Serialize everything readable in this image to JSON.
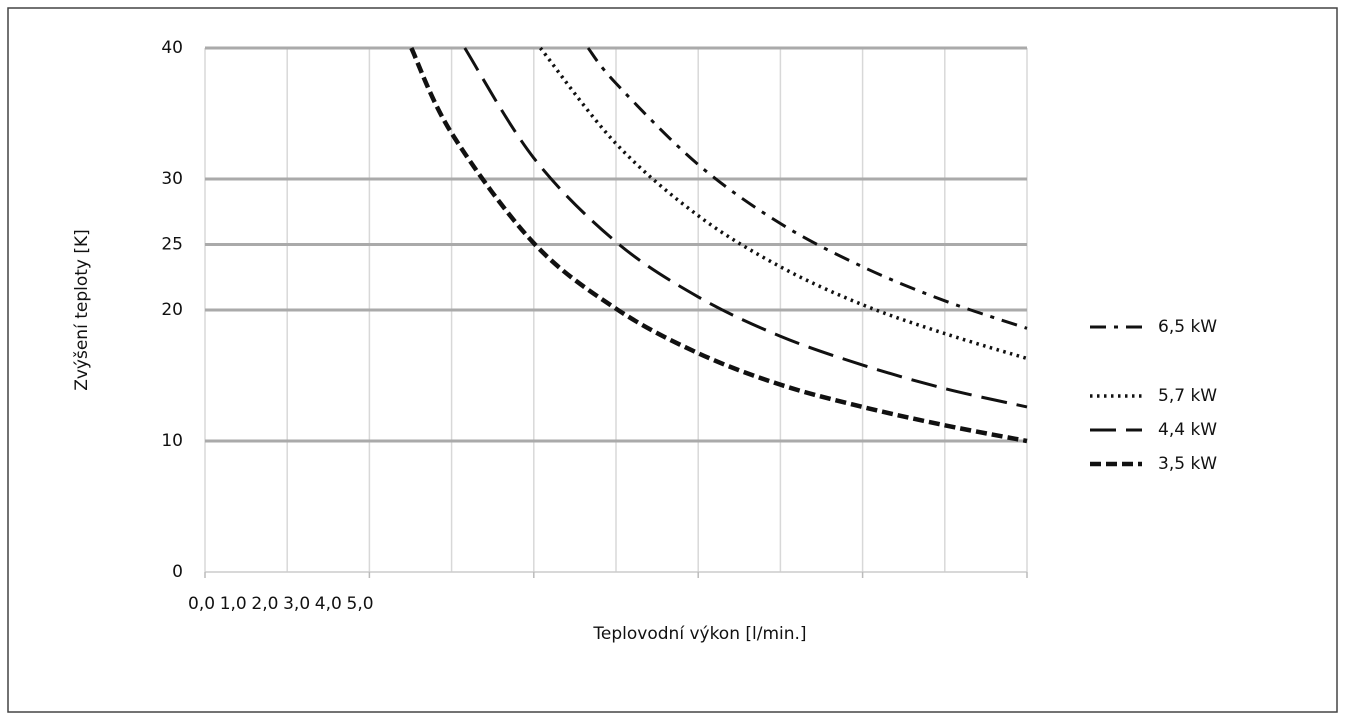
{
  "chart_data": {
    "type": "line",
    "x_label": "Teplovodní výkon [l/min.]",
    "y_label": "Zvýšení teploty [K]",
    "xlim": [
      0,
      5
    ],
    "xticks": [
      {
        "value": 0,
        "label": "0,0"
      },
      {
        "value": 1,
        "label": "1,0"
      },
      {
        "value": 2,
        "label": "2,0"
      },
      {
        "value": 3,
        "label": "3,0"
      },
      {
        "value": 4,
        "label": "4,0"
      },
      {
        "value": 5,
        "label": "5,0"
      }
    ],
    "ylim": [
      0,
      40
    ],
    "yticks": [
      0,
      10,
      20,
      25,
      30,
      40
    ],
    "grid": true,
    "legend": "right",
    "series": [
      {
        "name": "6,5 kW",
        "color": "#111111",
        "x": [
          2.33,
          2.5,
          3,
          3.5,
          4,
          4.5,
          5
        ],
        "values": [
          40,
          37.3,
          31.1,
          26.6,
          23.3,
          20.7,
          18.6
        ]
      },
      {
        "name": "5,7 kW",
        "color": "#111111",
        "x": [
          2.04,
          2.5,
          3,
          3.5,
          4,
          4.5,
          5
        ],
        "values": [
          40,
          32.7,
          27.2,
          23.3,
          20.4,
          18.2,
          16.3
        ]
      },
      {
        "name": "4,4 kW",
        "color": "#111111",
        "x": [
          1.58,
          2,
          2.5,
          3,
          3.5,
          4,
          4.5,
          5
        ],
        "values": [
          40,
          31.6,
          25.2,
          21.0,
          18.0,
          15.8,
          14.0,
          12.6
        ]
      },
      {
        "name": "3,5 kW",
        "color": "#111111",
        "x": [
          1.255,
          1.5,
          2,
          2.5,
          3,
          3.5,
          4,
          4.5,
          5
        ],
        "values": [
          40,
          33.5,
          25.1,
          20.1,
          16.7,
          14.3,
          12.6,
          11.2,
          10.0
        ]
      }
    ]
  }
}
